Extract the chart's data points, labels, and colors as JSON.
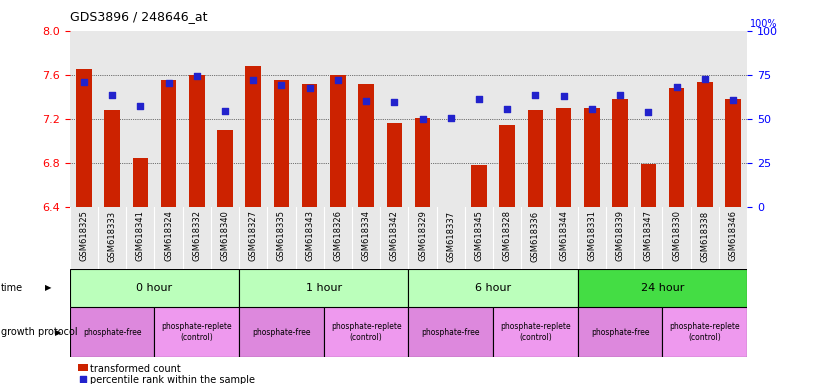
{
  "title": "GDS3896 / 248646_at",
  "samples": [
    "GSM618325",
    "GSM618333",
    "GSM618341",
    "GSM618324",
    "GSM618332",
    "GSM618340",
    "GSM618327",
    "GSM618335",
    "GSM618343",
    "GSM618326",
    "GSM618334",
    "GSM618342",
    "GSM618329",
    "GSM618337",
    "GSM618345",
    "GSM618328",
    "GSM618336",
    "GSM618344",
    "GSM618331",
    "GSM618339",
    "GSM618347",
    "GSM618330",
    "GSM618338",
    "GSM618346"
  ],
  "bar_values": [
    7.65,
    7.28,
    6.85,
    7.55,
    7.6,
    7.1,
    7.68,
    7.55,
    7.52,
    7.6,
    7.52,
    7.16,
    7.21,
    6.4,
    6.78,
    7.15,
    7.28,
    7.3,
    7.3,
    7.38,
    6.79,
    7.48,
    7.54,
    7.38
  ],
  "dot_values": [
    7.54,
    7.42,
    7.32,
    7.53,
    7.59,
    7.27,
    7.55,
    7.51,
    7.48,
    7.55,
    7.36,
    7.35,
    7.2,
    7.21,
    7.38,
    7.29,
    7.42,
    7.41,
    7.29,
    7.42,
    7.26,
    7.49,
    7.56,
    7.37
  ],
  "ylim_left": [
    6.4,
    8.0
  ],
  "yticks_left": [
    6.4,
    6.8,
    7.2,
    7.6,
    8.0
  ],
  "yticks_right": [
    0,
    25,
    50,
    75,
    100
  ],
  "bar_color": "#CC2200",
  "dot_color": "#2222CC",
  "bar_bottom": 6.4,
  "time_groups": [
    {
      "label": "0 hour",
      "start": 0,
      "end": 6,
      "color": "#bbffbb"
    },
    {
      "label": "1 hour",
      "start": 6,
      "end": 12,
      "color": "#bbffbb"
    },
    {
      "label": "6 hour",
      "start": 12,
      "end": 18,
      "color": "#bbffbb"
    },
    {
      "label": "24 hour",
      "start": 18,
      "end": 24,
      "color": "#44dd44"
    }
  ],
  "prot_groups": [
    {
      "label": "phosphate-free",
      "start": 0,
      "end": 3,
      "color": "#dd88dd"
    },
    {
      "label": "phosphate-replete\n(control)",
      "start": 3,
      "end": 6,
      "color": "#ee99ee"
    },
    {
      "label": "phosphate-free",
      "start": 6,
      "end": 9,
      "color": "#dd88dd"
    },
    {
      "label": "phosphate-replete\n(control)",
      "start": 9,
      "end": 12,
      "color": "#ee99ee"
    },
    {
      "label": "phosphate-free",
      "start": 12,
      "end": 15,
      "color": "#dd88dd"
    },
    {
      "label": "phosphate-replete\n(control)",
      "start": 15,
      "end": 18,
      "color": "#ee99ee"
    },
    {
      "label": "phosphate-free",
      "start": 18,
      "end": 21,
      "color": "#dd88dd"
    },
    {
      "label": "phosphate-replete\n(control)",
      "start": 21,
      "end": 24,
      "color": "#ee99ee"
    }
  ],
  "legend_bar_label": "transformed count",
  "legend_dot_label": "percentile rank within the sample",
  "time_label": "time",
  "protocol_label": "growth protocol",
  "grid_lines": [
    6.8,
    7.2,
    7.6
  ],
  "bg_color": "#e8e8e8"
}
